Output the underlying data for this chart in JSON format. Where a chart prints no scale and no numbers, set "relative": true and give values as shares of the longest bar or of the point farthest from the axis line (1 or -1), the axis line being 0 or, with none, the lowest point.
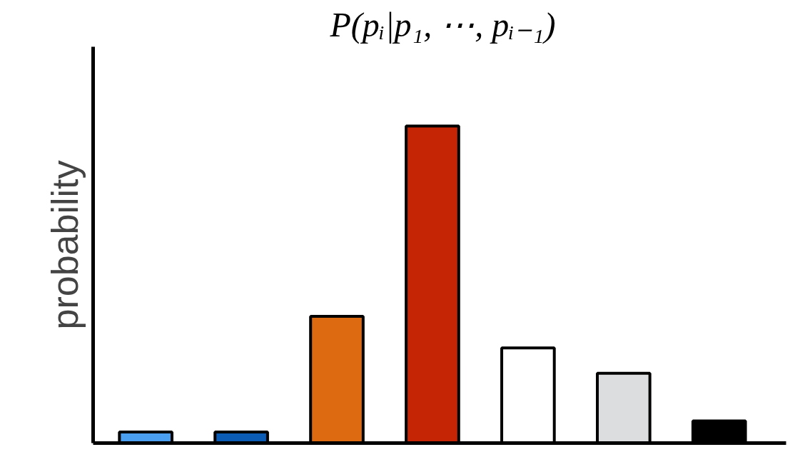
{
  "chart_data": {
    "type": "bar",
    "title": "P(pᵢ|p₁, ⋯, pᵢ₋₁)",
    "ylabel": "probability",
    "relative": true,
    "categories": [
      null,
      null,
      null,
      null,
      null,
      null,
      null
    ],
    "values": [
      0.035,
      0.035,
      0.4,
      1,
      0.3,
      0.22,
      0.07
    ],
    "colors": [
      "#4a9ff0",
      "#0a5cb5",
      "#dd6a10",
      "#c62505",
      "#ffffff",
      "#dcdddf",
      "#000000"
    ],
    "grid": false
  }
}
